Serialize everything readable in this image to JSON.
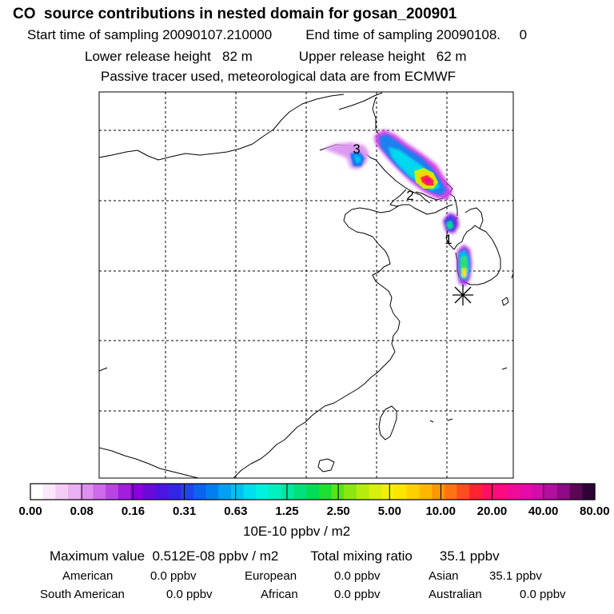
{
  "header": {
    "title": "CO  source contributions in nested domain for gosan_200901",
    "start_label": "Start time of sampling 20090107.210000",
    "end_label": "End time of sampling 20090108.     0",
    "lower_label": "Lower release height   82 m",
    "upper_label": "Upper release height   62 m",
    "tracer_note": "Passive tracer used, meteorological data are from ECMWF"
  },
  "map": {
    "markers": [
      "3",
      "2",
      "1"
    ],
    "receptor_symbol": "asterisk"
  },
  "colorbar": {
    "colors": [
      "#ffffff",
      "#fbe8fb",
      "#f4cdf6",
      "#eab0f1",
      "#dd8ff0",
      "#cc6ae9",
      "#b845e2",
      "#a31dde",
      "#8a00dc",
      "#6a0ad8",
      "#4d14df",
      "#3326e6",
      "#1f44ec",
      "#0b63ef",
      "#0080ef",
      "#00a1f2",
      "#00c2f2",
      "#00dfee",
      "#00f2de",
      "#00f0c0",
      "#00e8a0",
      "#00e07c",
      "#00dc55",
      "#1ee030",
      "#56e41a",
      "#8be812",
      "#b6ec10",
      "#d8f00c",
      "#f2f00a",
      "#ffe600",
      "#ffd000",
      "#ffb800",
      "#ff9800",
      "#ff7410",
      "#ff4d1f",
      "#ff2430",
      "#ff1060",
      "#fb0a80",
      "#f00a98",
      "#e60aaa",
      "#d20cac",
      "#b20e9f",
      "#8e0a86",
      "#5c0656",
      "#2e0236"
    ],
    "tick_labels": [
      "0.00",
      "0.08",
      "0.16",
      "0.31",
      "0.63",
      "1.25",
      "2.50",
      "5.00",
      "10.00",
      "20.00",
      "40.00",
      "80.00"
    ],
    "units": "10E-10 ppbv / m2"
  },
  "summary": {
    "max_label": "Maximum value",
    "max_value": "0.512E-08 ppbv / m2",
    "total_label": "Total mixing ratio",
    "total_value": "35.1 ppbv"
  },
  "regions": [
    {
      "name": "American",
      "value": "0.0 ppbv"
    },
    {
      "name": "European",
      "value": "0.0 ppbv"
    },
    {
      "name": "Asian",
      "value": "35.1 ppbv"
    },
    {
      "name": "South American",
      "value": "0.0 ppbv"
    },
    {
      "name": "African",
      "value": "0.0 ppbv"
    },
    {
      "name": "Australian",
      "value": "0.0 ppbv"
    }
  ]
}
